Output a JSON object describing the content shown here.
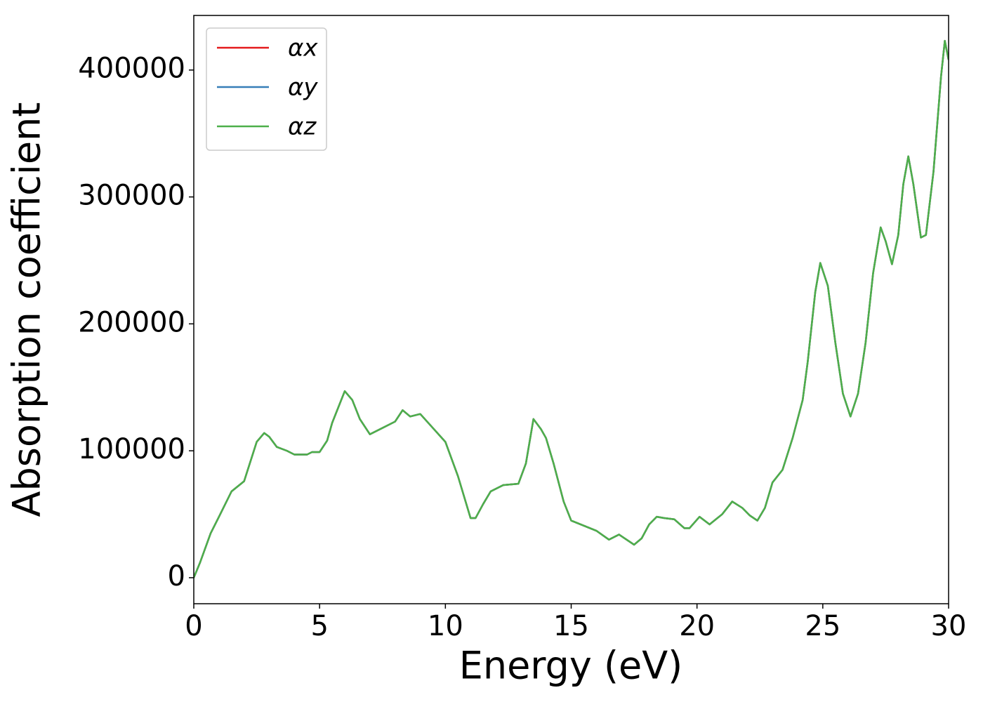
{
  "chart_data": {
    "type": "line",
    "xlabel": "Energy (eV)",
    "ylabel": "Absorption coefficient",
    "x": [
      0,
      0.25,
      0.67,
      1.0,
      1.5,
      2.0,
      2.5,
      2.8,
      3.0,
      3.3,
      3.7,
      4.0,
      4.5,
      4.7,
      5.0,
      5.3,
      5.5,
      6.0,
      6.3,
      6.6,
      7.0,
      7.5,
      8.0,
      8.3,
      8.6,
      9.0,
      9.5,
      10.0,
      10.5,
      11.0,
      11.2,
      11.5,
      11.8,
      12.3,
      12.9,
      13.2,
      13.5,
      13.8,
      14.0,
      14.3,
      14.7,
      15.0,
      15.5,
      16.0,
      16.5,
      16.9,
      17.2,
      17.5,
      17.8,
      18.1,
      18.4,
      18.7,
      19.1,
      19.5,
      19.7,
      20.1,
      20.5,
      21.0,
      21.4,
      21.8,
      22.1,
      22.4,
      22.7,
      23.0,
      23.4,
      23.8,
      24.2,
      24.4,
      24.7,
      24.9,
      25.2,
      25.5,
      25.8,
      26.1,
      26.4,
      26.7,
      27.0,
      27.3,
      27.5,
      27.75,
      28.0,
      28.2,
      28.4,
      28.6,
      28.9,
      29.1,
      29.4,
      29.7,
      29.85,
      30.0
    ],
    "series": [
      {
        "name": "αx",
        "color": "#e41a1c",
        "values": [
          0,
          12000,
          35000,
          48000,
          68000,
          76000,
          107000,
          114000,
          111000,
          103000,
          100000,
          97000,
          97000,
          99000,
          99000,
          108000,
          122000,
          147000,
          140000,
          125000,
          113000,
          118000,
          123000,
          132000,
          127000,
          129000,
          118000,
          107000,
          80000,
          47000,
          47000,
          58000,
          68000,
          73000,
          74000,
          90000,
          125000,
          117000,
          110000,
          90000,
          60000,
          45000,
          41000,
          37000,
          30000,
          34000,
          30000,
          26000,
          31000,
          42000,
          48000,
          47000,
          46000,
          39000,
          39000,
          48000,
          42000,
          50000,
          60000,
          55000,
          49000,
          45000,
          55000,
          75000,
          85000,
          110000,
          140000,
          170000,
          225000,
          248000,
          230000,
          185000,
          145000,
          127000,
          145000,
          185000,
          240000,
          276000,
          265000,
          247000,
          270000,
          310000,
          332000,
          310000,
          268000,
          270000,
          320000,
          395000,
          423000,
          408000
        ]
      },
      {
        "name": "αy",
        "color": "#377eb8",
        "values": [
          0,
          12000,
          35000,
          48000,
          68000,
          76000,
          107000,
          114000,
          111000,
          103000,
          100000,
          97000,
          97000,
          99000,
          99000,
          108000,
          122000,
          147000,
          140000,
          125000,
          113000,
          118000,
          123000,
          132000,
          127000,
          129000,
          118000,
          107000,
          80000,
          47000,
          47000,
          58000,
          68000,
          73000,
          74000,
          90000,
          125000,
          117000,
          110000,
          90000,
          60000,
          45000,
          41000,
          37000,
          30000,
          34000,
          30000,
          26000,
          31000,
          42000,
          48000,
          47000,
          46000,
          39000,
          39000,
          48000,
          42000,
          50000,
          60000,
          55000,
          49000,
          45000,
          55000,
          75000,
          85000,
          110000,
          140000,
          170000,
          225000,
          248000,
          230000,
          185000,
          145000,
          127000,
          145000,
          185000,
          240000,
          276000,
          265000,
          247000,
          270000,
          310000,
          332000,
          310000,
          268000,
          270000,
          320000,
          395000,
          423000,
          408000
        ]
      },
      {
        "name": "αz",
        "color": "#4daf4a",
        "values": [
          0,
          12000,
          35000,
          48000,
          68000,
          76000,
          107000,
          114000,
          111000,
          103000,
          100000,
          97000,
          97000,
          99000,
          99000,
          108000,
          122000,
          147000,
          140000,
          125000,
          113000,
          118000,
          123000,
          132000,
          127000,
          129000,
          118000,
          107000,
          80000,
          47000,
          47000,
          58000,
          68000,
          73000,
          74000,
          90000,
          125000,
          117000,
          110000,
          90000,
          60000,
          45000,
          41000,
          37000,
          30000,
          34000,
          30000,
          26000,
          31000,
          42000,
          48000,
          47000,
          46000,
          39000,
          39000,
          48000,
          42000,
          50000,
          60000,
          55000,
          49000,
          45000,
          55000,
          75000,
          85000,
          110000,
          140000,
          170000,
          225000,
          248000,
          230000,
          185000,
          145000,
          127000,
          145000,
          185000,
          240000,
          276000,
          265000,
          247000,
          270000,
          310000,
          332000,
          310000,
          268000,
          270000,
          320000,
          395000,
          423000,
          408000
        ]
      }
    ],
    "xlim": [
      0,
      30
    ],
    "xticks": [
      0,
      5,
      10,
      15,
      20,
      25,
      30
    ],
    "ylim": [
      -20500,
      443000
    ],
    "yticks": [
      0,
      100000,
      200000,
      300000,
      400000
    ],
    "grid": false,
    "legend": "upper left"
  }
}
